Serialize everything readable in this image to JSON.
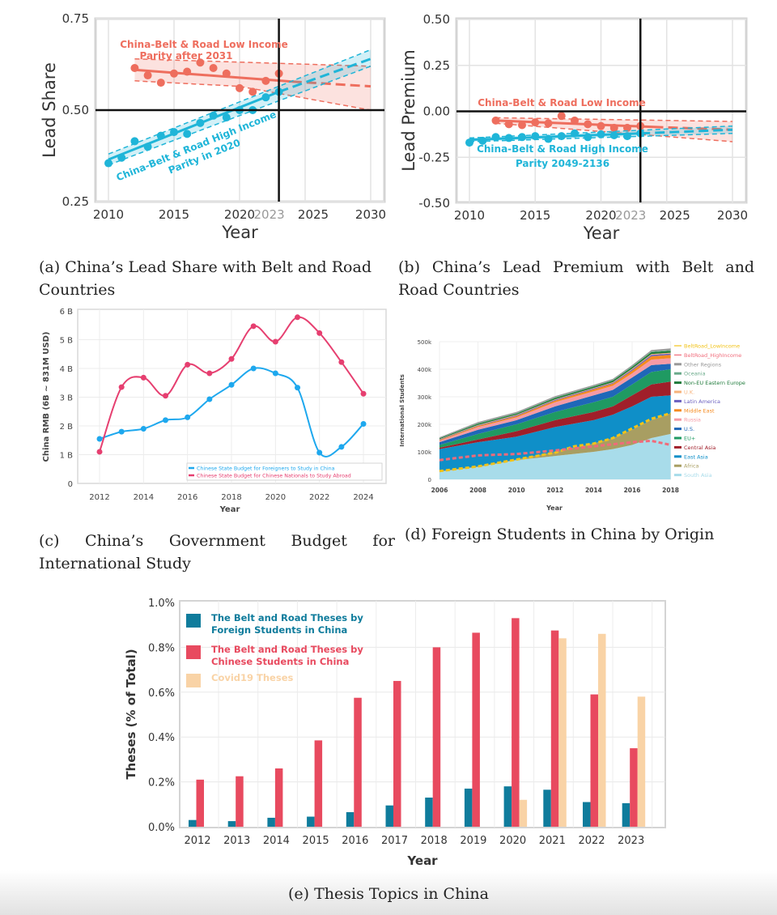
{
  "captions": {
    "a": "(a) China’s Lead Share with Belt and Road Countries",
    "b": "(b) China’s Lead Premium with Belt and Road Countries",
    "c": "(c) China’s Government Budget for International Study",
    "d": "(d) Foreign Students in China by Origin",
    "e": "(e) Thesis Topics in China"
  },
  "chart_data": [
    {
      "id": "a",
      "type": "scatter",
      "xlabel": "Year",
      "ylabel": "Lead Share",
      "xlim": [
        2009,
        2031
      ],
      "ylim": [
        0.25,
        0.75
      ],
      "xticks": [
        "2010",
        "2015",
        "2020",
        "2023",
        "2025",
        "2030"
      ],
      "yticks": [
        "0.25",
        "0.50",
        "0.75"
      ],
      "reference_lines": {
        "x": 2023,
        "y": 0.5
      },
      "series": [
        {
          "name": "China-Belt & Road Low Income",
          "color": "#ee6e5e",
          "x": [
            2012,
            2013,
            2014,
            2015,
            2016,
            2017,
            2018,
            2019,
            2020,
            2021,
            2022,
            2023
          ],
          "y": [
            0.615,
            0.595,
            0.575,
            0.6,
            0.605,
            0.63,
            0.615,
            0.6,
            0.56,
            0.55,
            0.58,
            0.6
          ],
          "trend": {
            "x": [
              2012,
              2024,
              2030
            ],
            "y": [
              0.61,
              0.578,
              0.565
            ]
          },
          "ci_upper": {
            "x": [
              2012,
              2030
            ],
            "y": [
              0.64,
              0.62
            ]
          },
          "ci_lower": {
            "x": [
              2012,
              2020,
              2030
            ],
            "y": [
              0.58,
              0.565,
              0.5
            ]
          }
        },
        {
          "name": "China-Belt & Road High Income",
          "color": "#1fb5d8",
          "x": [
            2010,
            2011,
            2012,
            2013,
            2014,
            2015,
            2016,
            2017,
            2018,
            2019,
            2020,
            2021,
            2022,
            2023
          ],
          "y": [
            0.355,
            0.37,
            0.415,
            0.4,
            0.43,
            0.44,
            0.435,
            0.465,
            0.485,
            0.48,
            0.5,
            0.5,
            0.535,
            0.55
          ],
          "trend": {
            "x": [
              2010,
              2023,
              2030
            ],
            "y": [
              0.365,
              0.55,
              0.64
            ]
          },
          "ci_upper": {
            "x": [
              2010,
              2030
            ],
            "y": [
              0.38,
              0.665
            ]
          },
          "ci_lower": {
            "x": [
              2010,
              2030
            ],
            "y": [
              0.35,
              0.62
            ]
          }
        }
      ],
      "annotations": [
        {
          "lines": [
            "China-Belt & Road Low Income",
            "Parity after 2031"
          ],
          "series": 0
        },
        {
          "lines": [
            "China-Belt & Road High Income",
            "Parity in 2020"
          ],
          "series": 1
        }
      ]
    },
    {
      "id": "b",
      "type": "scatter",
      "xlabel": "Year",
      "ylabel": "Lead Premium",
      "xlim": [
        2009,
        2031
      ],
      "ylim": [
        -0.5,
        0.5
      ],
      "xticks": [
        "2010",
        "2015",
        "2020",
        "2023",
        "2025",
        "2030"
      ],
      "yticks": [
        "-0.50",
        "-0.25",
        "0.00",
        "0.25",
        "0.50"
      ],
      "reference_lines": {
        "x": 2023,
        "y": 0
      },
      "series": [
        {
          "name": "China-Belt & Road Low Income",
          "color": "#ee6e5e",
          "x": [
            2012,
            2013,
            2014,
            2015,
            2016,
            2017,
            2018,
            2019,
            2020,
            2021,
            2022,
            2023
          ],
          "y": [
            -0.05,
            -0.07,
            -0.075,
            -0.06,
            -0.065,
            -0.025,
            -0.05,
            -0.07,
            -0.08,
            -0.09,
            -0.09,
            -0.08
          ],
          "trend": {
            "x": [
              2012,
              2024,
              2030
            ],
            "y": [
              -0.05,
              -0.085,
              -0.1
            ]
          },
          "ci_upper": {
            "x": [
              2012,
              2030
            ],
            "y": [
              -0.035,
              -0.055
            ]
          },
          "ci_lower": {
            "x": [
              2012,
              2030
            ],
            "y": [
              -0.065,
              -0.165
            ]
          }
        },
        {
          "name": "China-Belt & Road High Income",
          "color": "#1fb5d8",
          "x": [
            2010,
            2011,
            2012,
            2013,
            2014,
            2015,
            2016,
            2017,
            2018,
            2019,
            2020,
            2021,
            2022,
            2023
          ],
          "y": [
            -0.17,
            -0.16,
            -0.14,
            -0.145,
            -0.14,
            -0.135,
            -0.15,
            -0.135,
            -0.12,
            -0.14,
            -0.125,
            -0.13,
            -0.135,
            -0.12
          ],
          "trend": {
            "x": [
              2010,
              2023,
              2030
            ],
            "y": [
              -0.155,
              -0.12,
              -0.1
            ]
          },
          "ci_upper": {
            "x": [
              2010,
              2030
            ],
            "y": [
              -0.145,
              -0.08
            ]
          },
          "ci_lower": {
            "x": [
              2010,
              2030
            ],
            "y": [
              -0.165,
              -0.12
            ]
          }
        }
      ],
      "annotations": [
        {
          "lines": [
            "China-Belt & Road Low Income"
          ],
          "series": 0
        },
        {
          "lines": [
            "China-Belt & Road High Income",
            "Parity 2049-2136"
          ],
          "series": 1
        }
      ]
    },
    {
      "id": "c",
      "type": "line",
      "xlabel": "Year",
      "ylabel": "China RMB (6B ~ 831M USD)",
      "xlim": [
        2011,
        2025
      ],
      "ylim": [
        0,
        6
      ],
      "xticks": [
        "2012",
        "2014",
        "2016",
        "2018",
        "2020",
        "2022",
        "2024"
      ],
      "yticks": [
        "0",
        "1 B",
        "2 B",
        "3 B",
        "4 B",
        "5 B",
        "6 B"
      ],
      "x": [
        2012,
        2013,
        2014,
        2015,
        2016,
        2017,
        2018,
        2019,
        2020,
        2021,
        2022,
        2023,
        2024
      ],
      "series": [
        {
          "name": "Chinese State Budget for Foreigners to Study in China",
          "color": "#1ea8ee",
          "values": [
            1.55,
            1.8,
            1.9,
            2.2,
            2.3,
            2.93,
            3.43,
            4.0,
            3.83,
            3.33,
            1.07,
            1.27,
            2.07
          ]
        },
        {
          "name": "Chinese State Budget for Chinese Nationals to Study Abroad",
          "color": "#e63f70",
          "values": [
            1.1,
            3.35,
            3.68,
            3.05,
            4.13,
            3.83,
            4.33,
            5.47,
            4.93,
            5.78,
            5.23,
            4.22,
            3.12
          ]
        }
      ],
      "legend": "bottom-right"
    },
    {
      "id": "d",
      "type": "area",
      "xlabel": "Year",
      "ylabel": "International Students",
      "xlim": [
        2006,
        2018
      ],
      "ylim": [
        0,
        500
      ],
      "xticks": [
        "2006",
        "2008",
        "2010",
        "2012",
        "2014",
        "2016",
        "2018"
      ],
      "yticks": [
        "0",
        "100k",
        "200k",
        "300k",
        "400k",
        "500k"
      ],
      "x": [
        2006,
        2008,
        2010,
        2012,
        2014,
        2015,
        2016,
        2017,
        2018
      ],
      "series": [
        {
          "name": "South Asia",
          "color": "#a8dcea",
          "values": [
            28,
            45,
            70,
            85,
            100,
            110,
            125,
            150,
            165
          ]
        },
        {
          "name": "Africa",
          "color": "#a89e62",
          "values": [
            2,
            2,
            2,
            15,
            30,
            40,
            55,
            65,
            75
          ]
        },
        {
          "name": "East Asia",
          "color": "#0f8fc8",
          "values": [
            80,
            88,
            83,
            90,
            85,
            85,
            85,
            85,
            65
          ]
        },
        {
          "name": "Central Asia",
          "color": "#a01f2a",
          "values": [
            5,
            10,
            20,
            25,
            30,
            30,
            40,
            45,
            50
          ]
        },
        {
          "name": "EU+",
          "color": "#1f9a62",
          "values": [
            10,
            20,
            25,
            30,
            35,
            35,
            40,
            45,
            45
          ]
        },
        {
          "name": "U.S.",
          "color": "#1f67b8",
          "values": [
            10,
            15,
            15,
            20,
            25,
            25,
            25,
            25,
            20
          ]
        },
        {
          "name": "Russia",
          "color": "#f59aa5",
          "values": [
            5,
            10,
            10,
            15,
            15,
            15,
            15,
            20,
            20
          ]
        },
        {
          "name": "Middle East",
          "color": "#f58a1f",
          "values": [
            3,
            4,
            5,
            6,
            7,
            8,
            10,
            12,
            12
          ]
        },
        {
          "name": "Latin America",
          "color": "#6a5fbf",
          "values": [
            2,
            2,
            3,
            3,
            3,
            3,
            4,
            5,
            5
          ]
        },
        {
          "name": "U.K.",
          "color": "#f7b27a",
          "values": [
            1,
            2,
            2,
            2,
            2,
            2,
            3,
            3,
            3
          ]
        },
        {
          "name": "Non-EU Eastern Europe",
          "color": "#1e7a3a",
          "values": [
            3,
            4,
            4,
            5,
            5,
            6,
            6,
            7,
            7
          ]
        },
        {
          "name": "Oceania",
          "color": "#6aaa8a",
          "values": [
            1,
            2,
            2,
            2,
            2,
            2,
            3,
            3,
            3
          ]
        },
        {
          "name": "Other Regions",
          "color": "#999999",
          "values": [
            3,
            4,
            4,
            4,
            4,
            4,
            4,
            5,
            6
          ]
        }
      ],
      "lines": [
        {
          "name": "BeltRoad_LowIncome",
          "color": "#f2c318",
          "x": [
            2006,
            2008,
            2010,
            2012,
            2013,
            2014,
            2015,
            2016,
            2017,
            2018
          ],
          "values": [
            30,
            47,
            72,
            97,
            120,
            130,
            150,
            185,
            220,
            240
          ]
        },
        {
          "name": "BeltRoad_HighIncome",
          "color": "#f06b7a",
          "x": [
            2006,
            2008,
            2010,
            2012,
            2014,
            2016,
            2017,
            2018
          ],
          "values": [
            70,
            87,
            92,
            105,
            120,
            135,
            140,
            125
          ]
        }
      ],
      "legend_order": [
        "BeltRoad_LowIncome",
        "BeltRoad_HighIncome",
        "Other Regions",
        "Oceania",
        "Non-EU Eastern Europe",
        "U.K.",
        "Latin America",
        "Middle East",
        "Russia",
        "U.S.",
        "EU+",
        "Central Asia",
        "East Asia",
        "Africa",
        "South Asia"
      ],
      "legend": "right"
    },
    {
      "id": "e",
      "type": "bar",
      "xlabel": "Year",
      "ylabel": "Theses (% of Total)",
      "ylim": [
        0,
        1.0
      ],
      "yticks": [
        "0.0%",
        "0.2%",
        "0.4%",
        "0.6%",
        "0.8%",
        "1.0%"
      ],
      "categories": [
        "2012",
        "2013",
        "2014",
        "2015",
        "2016",
        "2017",
        "2018",
        "2019",
        "2020",
        "2021",
        "2022",
        "2023"
      ],
      "series": [
        {
          "name": "The Belt and Road Theses by Foreign Students in China",
          "legend_lines": [
            "The Belt and Road Theses by",
            "Foreign Students in China"
          ],
          "color": "#0f7c9c",
          "values": [
            0.03,
            0.025,
            0.04,
            0.045,
            0.065,
            0.095,
            0.13,
            0.17,
            0.18,
            0.165,
            0.11,
            0.105
          ]
        },
        {
          "name": "The Belt and Road Theses by Chinese Students in China",
          "legend_lines": [
            "The Belt and Road Theses by",
            "Chinese Students in China"
          ],
          "color": "#e84a5f",
          "values": [
            0.21,
            0.225,
            0.26,
            0.385,
            0.575,
            0.65,
            0.8,
            0.865,
            0.93,
            0.875,
            0.59,
            0.35
          ]
        },
        {
          "name": "Covid19 Theses",
          "legend_lines": [
            "Covid19 Theses"
          ],
          "color": "#f9d3a6",
          "values": [
            0,
            0,
            0,
            0,
            0,
            0,
            0,
            0,
            0.12,
            0.84,
            0.86,
            0.58
          ]
        }
      ],
      "legend": "top-left"
    }
  ]
}
